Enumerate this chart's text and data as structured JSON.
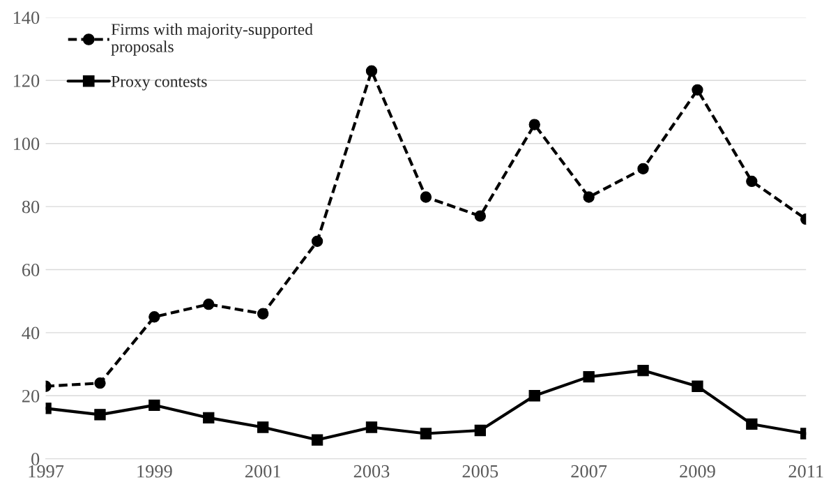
{
  "chart_data": {
    "type": "line",
    "x": [
      1997,
      1998,
      1999,
      2000,
      2001,
      2002,
      2003,
      2004,
      2005,
      2006,
      2007,
      2008,
      2009,
      2010,
      2011
    ],
    "series": [
      {
        "name": "Firms with majority-supported\nproposals",
        "color": "#000000",
        "marker": "circle",
        "line_style": "dashed",
        "values": [
          23,
          24,
          45,
          49,
          46,
          69,
          123,
          83,
          77,
          106,
          83,
          92,
          117,
          88,
          76
        ]
      },
      {
        "name": "Proxy contests",
        "color": "#000000",
        "marker": "square",
        "line_style": "solid",
        "values": [
          16,
          14,
          17,
          13,
          10,
          6,
          10,
          8,
          9,
          20,
          26,
          28,
          23,
          11,
          8
        ]
      }
    ],
    "xlim": [
      1997,
      2011
    ],
    "xticks": [
      1997,
      1999,
      2001,
      2003,
      2005,
      2007,
      2009,
      2011
    ],
    "ylim": [
      0,
      140
    ],
    "yticks": [
      0,
      20,
      40,
      60,
      80,
      100,
      120,
      140
    ],
    "grid": "y",
    "legend": "top left"
  }
}
